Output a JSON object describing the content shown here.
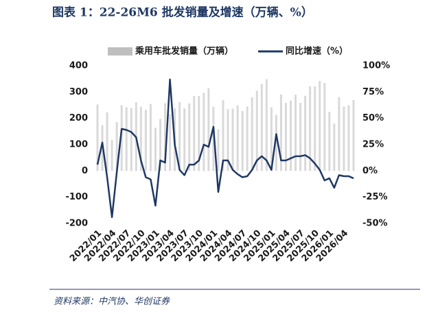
{
  "chart_data": {
    "type": "bar-line",
    "title": "图表 1：22-26M6 批发销量及增速（万辆、%）",
    "source": "资料来源：中汽协、华创证券",
    "categories": [
      "2022/01",
      null,
      null,
      "2022/04",
      null,
      null,
      "2022/07",
      null,
      null,
      "2022/10",
      null,
      null,
      "2023/01",
      null,
      null,
      "2023/04",
      null,
      null,
      "2023/07",
      null,
      null,
      "2023/10",
      null,
      null,
      "2024/01",
      null,
      null,
      "2024/04",
      null,
      null,
      "2024/07",
      null,
      null,
      "2024/10",
      null,
      null,
      "2025/01",
      null,
      null,
      "2025/04",
      null,
      null,
      "2025/07",
      null,
      null,
      "2025/10",
      null,
      null,
      "2026/01",
      null,
      null,
      "2026/04",
      null,
      null
    ],
    "series": [
      {
        "name": "乘用车批发销量（万辆）",
        "type": "bar",
        "color": "#d9d9d9",
        "values": [
          253,
          174,
          223,
          118,
          186,
          250,
          242,
          239,
          261,
          244,
          233,
          255,
          164,
          198,
          258,
          216,
          238,
          262,
          238,
          257,
          285,
          285,
          297,
          315,
          244,
          158,
          269,
          235,
          237,
          250,
          228,
          245,
          280,
          305,
          331,
          349,
          242,
          213,
          291,
          259,
          268,
          290,
          259,
          286,
          322,
          322,
          343,
          335,
          225,
          180,
          281,
          245,
          250,
          270
        ]
      },
      {
        "name": "同比增速（%）",
        "type": "line",
        "axis": "y2",
        "color": "#1f3864",
        "values": [
          6,
          27,
          -6,
          -44,
          -1,
          40,
          39,
          37,
          32,
          10,
          -6,
          -8,
          -33,
          10,
          8,
          87,
          25,
          1,
          -4,
          6,
          6,
          10,
          25,
          23,
          42,
          -20,
          10,
          10,
          1,
          -3,
          -6,
          -5,
          1,
          10,
          14,
          10,
          1,
          35,
          10,
          10,
          12,
          14,
          14,
          15,
          12,
          7,
          1,
          -9,
          -7,
          -16,
          -4,
          -5,
          -5,
          -7
        ]
      }
    ],
    "ylim": [
      -200,
      400
    ],
    "yticks": [
      -200,
      -100,
      0,
      100,
      200,
      300,
      400
    ],
    "y2lim": [
      -50,
      100
    ],
    "y2ticks": [
      {
        "value": -50,
        "label": "-50%"
      },
      {
        "value": -25,
        "label": "-25%"
      },
      {
        "value": 0,
        "label": "0%"
      },
      {
        "value": 25,
        "label": "25%"
      },
      {
        "value": 50,
        "label": "50%"
      },
      {
        "value": 75,
        "label": "75%"
      },
      {
        "value": 100,
        "label": "100%"
      }
    ],
    "legend": "top"
  }
}
